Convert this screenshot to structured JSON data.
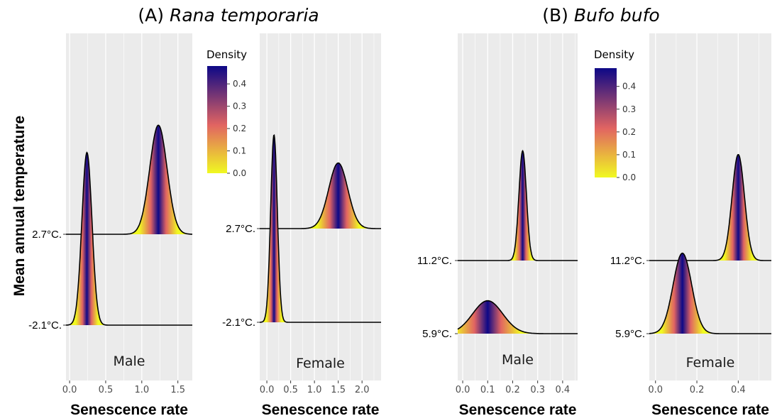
{
  "titles": {
    "a_prefix": "(A) ",
    "a_species": "Rana temporaria",
    "b_prefix": "(B) ",
    "b_species": "Bufo bufo"
  },
  "ylabel": "Mean annual temperature",
  "colors": {
    "panel_bg": "#ebebeb",
    "grid": "#ffffff",
    "curve": "#000000",
    "low": "#f0f921",
    "mid": "#e16462",
    "high": "#0d0887"
  },
  "legend": {
    "title": "Density",
    "ticks": [
      "0.4",
      "0.3",
      "0.2",
      "0.1",
      "0.0"
    ],
    "values": [
      0.4,
      0.3,
      0.2,
      0.1,
      0.0
    ],
    "max": 0.48
  },
  "chart_data": [
    {
      "type": "ridgeline",
      "group": "Rana temporaria",
      "sex": "Male",
      "xlabel": "Senescence rate",
      "xlim": [
        -0.05,
        1.7
      ],
      "xticks": [
        0.0,
        0.5,
        1.0,
        1.5
      ],
      "xtick_labels": [
        "0.0",
        "0.5",
        "1.0",
        "1.5"
      ],
      "ylevels": [
        "2.7°C.",
        "-2.1°C."
      ],
      "series": [
        {
          "name": "2.7°C.",
          "mean": 1.23,
          "sd": 0.12,
          "peak": 1.2
        },
        {
          "name": "-2.1°C.",
          "mean": 0.24,
          "sd": 0.07,
          "peak": 1.9
        }
      ]
    },
    {
      "type": "ridgeline",
      "group": "Rana temporaria",
      "sex": "Female",
      "xlabel": "Senescence rate",
      "xlim": [
        -0.15,
        2.4
      ],
      "xticks": [
        0.0,
        0.5,
        1.0,
        1.5,
        2.0
      ],
      "xtick_labels": [
        "0.0",
        "0.5",
        "1.0",
        "1.5",
        "2.0"
      ],
      "ylevels": [
        "2.7°C.",
        "-2.1°C."
      ],
      "series": [
        {
          "name": "2.7°C.",
          "mean": 1.5,
          "sd": 0.2,
          "peak": 0.7
        },
        {
          "name": "-2.1°C.",
          "mean": 0.15,
          "sd": 0.07,
          "peak": 2.0
        }
      ]
    },
    {
      "type": "ridgeline",
      "group": "Bufo bufo",
      "sex": "Male",
      "xlabel": "Senescence rate",
      "xlim": [
        -0.02,
        0.46
      ],
      "xticks": [
        0.0,
        0.1,
        0.2,
        0.3,
        0.4
      ],
      "xtick_labels": [
        "0.0",
        "0.1",
        "0.2",
        "0.3",
        "0.4"
      ],
      "ylevels": [
        "11.2°C.",
        "5.9°C."
      ],
      "series": [
        {
          "name": "11.2°C.",
          "mean": 0.24,
          "sd": 0.015,
          "peak": 1.5
        },
        {
          "name": "5.9°C.",
          "mean": 0.1,
          "sd": 0.06,
          "peak": 0.45
        }
      ]
    },
    {
      "type": "ridgeline",
      "group": "Bufo bufo",
      "sex": "Female",
      "xlabel": "Senescence rate",
      "xlim": [
        -0.03,
        0.56
      ],
      "xticks": [
        0.0,
        0.2,
        0.4
      ],
      "xtick_labels": [
        "0.0",
        "0.2",
        "0.4"
      ],
      "ylevels": [
        "11.2°C.",
        "5.9°C."
      ],
      "series": [
        {
          "name": "11.2°C.",
          "mean": 0.4,
          "sd": 0.03,
          "peak": 1.45
        },
        {
          "name": "5.9°C.",
          "mean": 0.13,
          "sd": 0.045,
          "peak": 1.1
        }
      ]
    }
  ]
}
